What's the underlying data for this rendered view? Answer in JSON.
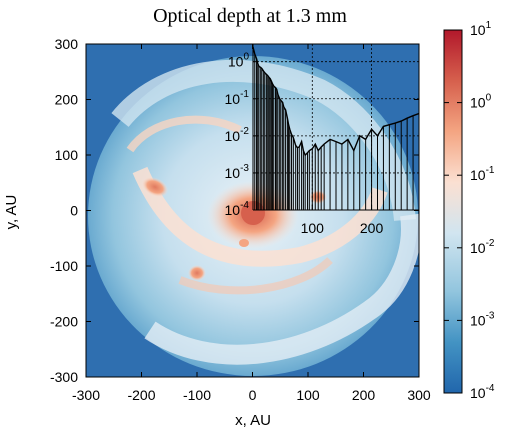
{
  "chart_data": {
    "type": "heatmap",
    "title": "Optical depth at 1.3 mm",
    "xlabel": "x, AU",
    "ylabel": "y, AU",
    "xlim": [
      -300,
      300
    ],
    "ylim": [
      -300,
      300
    ],
    "x_ticks": [
      "-300",
      "-200",
      "-100",
      "0",
      "100",
      "200",
      "300"
    ],
    "y_ticks": [
      "-300",
      "-200",
      "-100",
      "0",
      "100",
      "200",
      "300"
    ],
    "colorbar": {
      "scale": "log",
      "range": [
        0.0001,
        10
      ],
      "ticks": [
        {
          "base": "10",
          "exp": "-4"
        },
        {
          "base": "10",
          "exp": "-3"
        },
        {
          "base": "10",
          "exp": "-2"
        },
        {
          "base": "10",
          "exp": "-1"
        },
        {
          "base": "10",
          "exp": "0"
        },
        {
          "base": "10",
          "exp": "1"
        }
      ],
      "colors": [
        "#2166ac",
        "#4393c3",
        "#92c5de",
        "#d1e5f0",
        "#fbe0d2",
        "#f4a582",
        "#d6604d",
        "#b2182b"
      ]
    },
    "inset": {
      "type": "line",
      "yscale": "log",
      "xlim": [
        0,
        280
      ],
      "ylim": [
        0.0001,
        3
      ],
      "x_ticks": [
        "100",
        "200"
      ],
      "y_ticks": [
        {
          "base": "10",
          "exp": "0"
        },
        {
          "base": "10",
          "exp": "-1"
        },
        {
          "base": "10",
          "exp": "-2"
        },
        {
          "base": "10",
          "exp": "-3"
        },
        {
          "base": "10",
          "exp": "-4"
        }
      ],
      "grid": true,
      "series": [
        {
          "values": [
            [
              0,
              2.5
            ],
            [
              3,
              1.6
            ],
            [
              6,
              1.2
            ],
            [
              8,
              0.9
            ],
            [
              10,
              0.75
            ],
            [
              13,
              0.7
            ],
            [
              15,
              0.65
            ],
            [
              18,
              0.55
            ],
            [
              20,
              0.5
            ],
            [
              23,
              0.45
            ],
            [
              25,
              0.42
            ],
            [
              27,
              0.38
            ],
            [
              29,
              0.35
            ],
            [
              31,
              0.3
            ],
            [
              33,
              0.25
            ],
            [
              35,
              0.22
            ],
            [
              38,
              0.2
            ],
            [
              40,
              0.18
            ],
            [
              42,
              0.13
            ],
            [
              45,
              0.1
            ],
            [
              47,
              0.09
            ],
            [
              50,
              0.08
            ],
            [
              52,
              0.06
            ],
            [
              55,
              0.05
            ],
            [
              58,
              0.03
            ],
            [
              60,
              0.02
            ],
            [
              62,
              0.015
            ],
            [
              65,
              0.011
            ],
            [
              68,
              0.009
            ],
            [
              72,
              0.0055
            ],
            [
              75,
              0.0048
            ],
            [
              78,
              0.005
            ],
            [
              82,
              0.007
            ],
            [
              85,
              0.004
            ],
            [
              88,
              0.003
            ],
            [
              92,
              0.0035
            ],
            [
              95,
              0.004
            ],
            [
              100,
              0.0045
            ],
            [
              105,
              0.006
            ],
            [
              110,
              0.004
            ],
            [
              115,
              0.005
            ],
            [
              120,
              0.006
            ],
            [
              130,
              0.008
            ],
            [
              140,
              0.007
            ],
            [
              150,
              0.006
            ],
            [
              160,
              0.008
            ],
            [
              170,
              0.004
            ],
            [
              180,
              0.01
            ],
            [
              190,
              0.008
            ],
            [
              200,
              0.015
            ],
            [
              210,
              0.01
            ],
            [
              220,
              0.018
            ],
            [
              230,
              0.02
            ],
            [
              240,
              0.022
            ],
            [
              250,
              0.025
            ],
            [
              260,
              0.03
            ],
            [
              270,
              0.035
            ],
            [
              280,
              0.04
            ]
          ]
        }
      ]
    }
  }
}
